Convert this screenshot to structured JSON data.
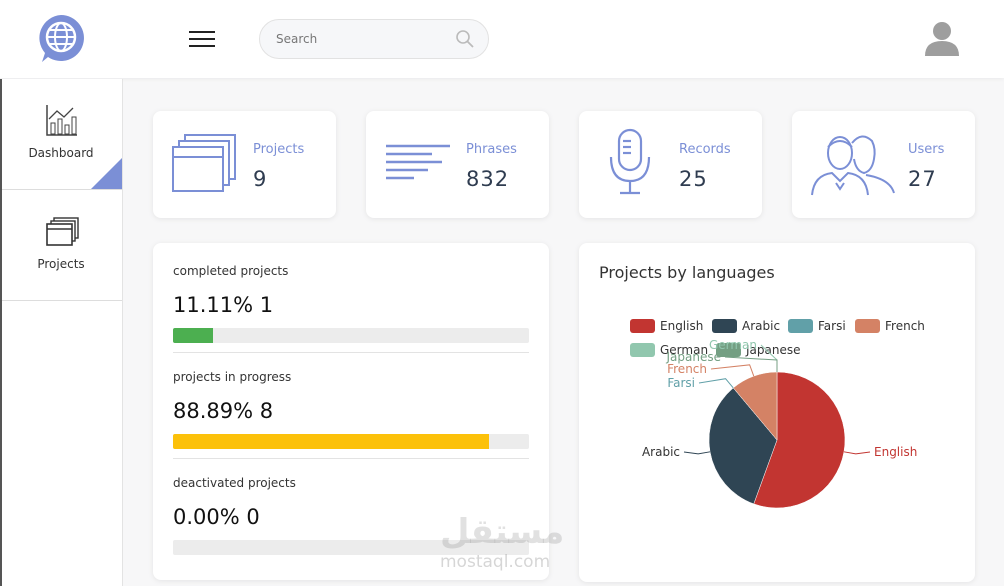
{
  "header": {
    "search_placeholder": "Search"
  },
  "sidebar": {
    "items": [
      "Dashboard",
      "Projects"
    ]
  },
  "stats": [
    {
      "label": "Projects",
      "value": 9
    },
    {
      "label": "Phrases",
      "value": 832
    },
    {
      "label": "Records",
      "value": 25
    },
    {
      "label": "Users",
      "value": 27
    }
  ],
  "progress": [
    {
      "label": "completed projects",
      "value": 11.11,
      "value_label": "11.11%",
      "count": 1,
      "color": "#4caf50"
    },
    {
      "label": "projects in progress",
      "value": 88.89,
      "value_label": "88.89%",
      "count": 8,
      "color": "#fcc10a"
    },
    {
      "label": "deactivated projects",
      "value": 0,
      "value_label": "0.00%",
      "count": 0,
      "color": "#9e9e9e"
    }
  ],
  "chart_data": {
    "type": "pie",
    "title": "Projects by languages",
    "categories": [
      "English",
      "Arabic",
      "Farsi",
      "French",
      "German",
      "Japanese"
    ],
    "values": [
      5,
      3,
      0,
      1,
      0,
      0
    ],
    "colors": [
      "#c23531",
      "#2f4554",
      "#61a0a8",
      "#d48265",
      "#91c7ae",
      "#749f83"
    ]
  },
  "watermark": [
    "مستقل",
    "mostaql.com"
  ]
}
